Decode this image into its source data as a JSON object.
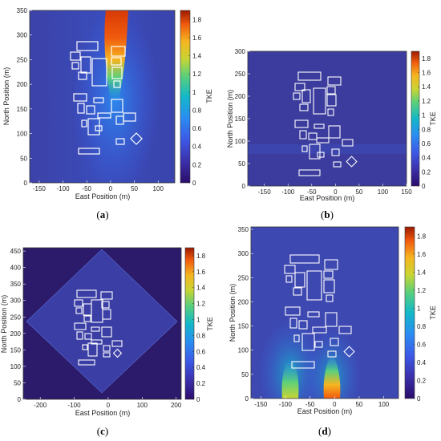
{
  "figure": {
    "panels": [
      {
        "id": "a",
        "label_open": "(",
        "label_letter": "a",
        "label_close": ")"
      },
      {
        "id": "b",
        "label_open": "(",
        "label_letter": "b",
        "label_close": ")"
      },
      {
        "id": "c",
        "label_open": "(",
        "label_letter": "c",
        "label_close": ")"
      },
      {
        "id": "d",
        "label_open": "(",
        "label_letter": "d",
        "label_close": ")"
      }
    ]
  },
  "chart_data": [
    {
      "type": "heatmap",
      "panel": "a",
      "xlabel": "East Position (m)",
      "ylabel": "North Position (m)",
      "xlim": [
        -170,
        135
      ],
      "ylim": [
        0,
        350
      ],
      "xticks": [
        -150,
        -100,
        -50,
        0,
        50,
        100
      ],
      "yticks": [
        0,
        50,
        100,
        150,
        200,
        250,
        300,
        350
      ],
      "colorbar_label": "TKE",
      "clim": [
        0,
        1.9
      ],
      "colorbar_ticks": [
        0,
        0.2,
        0.4,
        0.6,
        0.8,
        1,
        1.2,
        1.4,
        1.6,
        1.8
      ],
      "field_note": "high-TKE plume rising north from about (0,180) to the top edge near x=15"
    },
    {
      "type": "heatmap",
      "panel": "b",
      "xlabel": "East Position (m)",
      "ylabel": "North Position (m)",
      "xlim": [
        -185,
        150
      ],
      "ylim": [
        0,
        300
      ],
      "xticks": [
        -150,
        -100,
        -50,
        0,
        50,
        100,
        150
      ],
      "yticks": [
        0,
        50,
        100,
        150,
        200,
        250,
        300
      ],
      "colorbar_label": "TKE",
      "clim": [
        0,
        1.9
      ],
      "colorbar_ticks": [
        0,
        0.2,
        0.4,
        0.6,
        0.8,
        1,
        1.2,
        1.4,
        1.6,
        1.8
      ]
    },
    {
      "type": "heatmap",
      "panel": "c",
      "xlabel": "East Position (m)",
      "ylabel": "North Position (m)",
      "xlim": [
        -250,
        215
      ],
      "ylim": [
        0,
        460
      ],
      "xticks": [
        -200,
        -100,
        0,
        100,
        200
      ],
      "yticks": [
        0,
        50,
        100,
        150,
        200,
        250,
        300,
        350,
        400,
        450
      ],
      "colorbar_label": "TKE",
      "clim": [
        0,
        1.9
      ],
      "colorbar_ticks": [
        0,
        0.2,
        0.4,
        0.6,
        0.8,
        1,
        1.2,
        1.4,
        1.6,
        1.8
      ]
    },
    {
      "type": "heatmap",
      "panel": "d",
      "xlabel": "East Position (m)",
      "ylabel": "North Position (m)",
      "xlim": [
        -170,
        130
      ],
      "ylim": [
        0,
        355
      ],
      "xticks": [
        -150,
        -100,
        -50,
        0,
        50,
        100
      ],
      "yticks": [
        0,
        50,
        100,
        150,
        200,
        250,
        300,
        350
      ],
      "colorbar_label": "TKE",
      "clim": [
        0,
        1.9
      ],
      "colorbar_ticks": [
        0,
        0.2,
        0.4,
        0.6,
        0.8,
        1,
        1.2,
        1.4,
        1.6,
        1.8
      ],
      "field_note": "two plumes near ground: x=-90 (weaker) and x=-5 (stronger), reaching about y=60"
    }
  ]
}
